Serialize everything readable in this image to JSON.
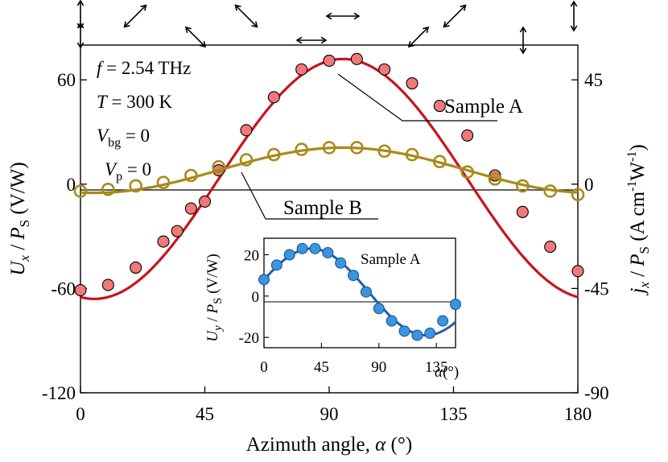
{
  "chart_data": [
    {
      "type": "scatter",
      "panel": "main",
      "xlabel": "Azimuth angle, α (°)",
      "ylabel": "U_x / P_S (V/W)",
      "y2label": "j_x / P_S (A cm⁻¹W⁻¹)",
      "xlim": [
        0,
        180
      ],
      "ylim": [
        -120,
        80
      ],
      "y2lim": [
        -90,
        60
      ],
      "x_ticks": [
        0,
        45,
        90,
        135,
        180
      ],
      "y_ticks": [
        -120,
        -60,
        0,
        60
      ],
      "y2_ticks": [
        -90,
        -45,
        0,
        45
      ],
      "x_tick_labels": [
        "0",
        "45",
        "90",
        "135",
        "180"
      ],
      "y_tick_labels": [
        "-120",
        "-60",
        "0",
        "60"
      ],
      "y2_tick_labels": [
        "-90",
        "-45",
        "0",
        "45"
      ],
      "conditions": {
        "frequency": "f = 2.54 THz",
        "temperature": "T = 300 K",
        "vbg": "V_bg = 0",
        "vp": "V_p = 0"
      },
      "series": [
        {
          "name": "Sample A",
          "color": "#c8141e",
          "marker_fill": "#f07878",
          "x": [
            0,
            10,
            20,
            30,
            35,
            40,
            45,
            50,
            60,
            70,
            80,
            90,
            100,
            110,
            120,
            130,
            140,
            150,
            160,
            170,
            180
          ],
          "y": [
            -61,
            -58,
            -48,
            -33,
            -27,
            -14,
            -10,
            8,
            31,
            50,
            66,
            71,
            72,
            66,
            58,
            45,
            28,
            5,
            -16,
            -36,
            -50
          ],
          "fit": {
            "A": 69,
            "B": 3,
            "x0": 95
          }
        },
        {
          "name": "Sample B",
          "color": "#a98a1a",
          "marker_fill": "none",
          "x": [
            0,
            10,
            20,
            30,
            40,
            50,
            60,
            70,
            80,
            90,
            100,
            110,
            120,
            130,
            140,
            150,
            160,
            170,
            180
          ],
          "y": [
            -4,
            -3,
            -1,
            1,
            5,
            10,
            14,
            17,
            20,
            21,
            21,
            19,
            17,
            13,
            7,
            3,
            -1,
            -4,
            -6
          ],
          "fit": {
            "A": 13,
            "B": 8,
            "x0": 95
          }
        }
      ]
    },
    {
      "type": "scatter",
      "panel": "inset",
      "xlabel": "α(°)",
      "ylabel": "U_y / P_S (V/W)",
      "xlim": [
        0,
        150
      ],
      "ylim": [
        -25,
        28
      ],
      "x_ticks": [
        0,
        45,
        90,
        135
      ],
      "y_ticks": [
        -20,
        0,
        20
      ],
      "x_tick_labels": [
        "0",
        "45",
        "90",
        "135"
      ],
      "y_tick_labels": [
        "-20",
        "0",
        "20"
      ],
      "series": [
        {
          "name": "Sample A",
          "color": "#1f5fa8",
          "marker_fill": "#3b94de",
          "x": [
            0,
            10,
            20,
            30,
            40,
            50,
            60,
            70,
            80,
            90,
            100,
            110,
            120,
            130,
            140,
            150
          ],
          "y": [
            8,
            15,
            20,
            23,
            23,
            21,
            16,
            10,
            2,
            -6,
            -12,
            -17,
            -19,
            -18,
            -12,
            -4
          ],
          "fit": {
            "A": 21,
            "B": 2,
            "x0": 37
          }
        }
      ]
    }
  ],
  "text": {
    "freq_prefix": "f",
    "freq_rest": " = 2.54 THz",
    "temp_prefix": "T",
    "temp_rest": " = 300 K",
    "vbg_main": "V",
    "vbg_sub": "bg",
    "vbg_rest": " = 0",
    "vp_main": "V",
    "vp_sub": "p",
    "vp_rest": " = 0",
    "sample_a": "Sample A",
    "sample_b": "Sample B",
    "xlabel_prefix": "Azimuth angle, ",
    "xlabel_symbol": "α",
    "xlabel_unit": " (°)",
    "ylabel_u": "U",
    "ylabel_sub": "x",
    "ylabel_rest": " / ",
    "ylabel_p": "P",
    "ylabel_psub": "S",
    "ylabel_unit": " (V/W)",
    "y2label_j": "j",
    "y2label_sub": "x",
    "y2label_mid": " / ",
    "y2label_p": "P",
    "y2label_psub": "S",
    "y2label_unit": " (A cm",
    "y2label_exp1": "-1",
    "y2label_w": "W",
    "y2label_exp2": "-1",
    "y2label_close": ")",
    "inset_ylabel_u": "U",
    "inset_ylabel_sub": "y",
    "inset_ylabel_rest": " / ",
    "inset_ylabel_p": "P",
    "inset_ylabel_psub": "S",
    "inset_ylabel_unit": " (V/W)",
    "inset_sample_label": "Sample A",
    "inset_xlabel_symbol": "α",
    "inset_xlabel_unit": "(°)"
  }
}
